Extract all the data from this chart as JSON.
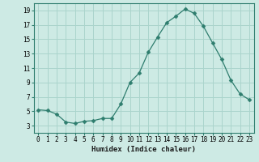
{
  "x": [
    0,
    1,
    2,
    3,
    4,
    5,
    6,
    7,
    8,
    9,
    10,
    11,
    12,
    13,
    14,
    15,
    16,
    17,
    18,
    19,
    20,
    21,
    22,
    23
  ],
  "y": [
    5.2,
    5.1,
    4.6,
    3.5,
    3.3,
    3.6,
    3.7,
    4.0,
    4.0,
    6.0,
    9.0,
    10.3,
    13.2,
    15.3,
    17.3,
    18.2,
    19.2,
    18.6,
    16.8,
    14.5,
    12.2,
    9.3,
    7.4,
    6.6
  ],
  "line_color": "#2e7d6e",
  "marker": "D",
  "marker_size": 2.5,
  "bg_color": "#cdeae4",
  "grid_color": "#aad4cc",
  "xlabel": "Humidex (Indice chaleur)",
  "ylim": [
    2,
    20
  ],
  "xlim": [
    -0.5,
    23.5
  ],
  "yticks": [
    3,
    5,
    7,
    9,
    11,
    13,
    15,
    17,
    19
  ],
  "xticks": [
    0,
    1,
    2,
    3,
    4,
    5,
    6,
    7,
    8,
    9,
    10,
    11,
    12,
    13,
    14,
    15,
    16,
    17,
    18,
    19,
    20,
    21,
    22,
    23
  ],
  "label_fontsize": 6.5,
  "tick_fontsize": 5.5
}
